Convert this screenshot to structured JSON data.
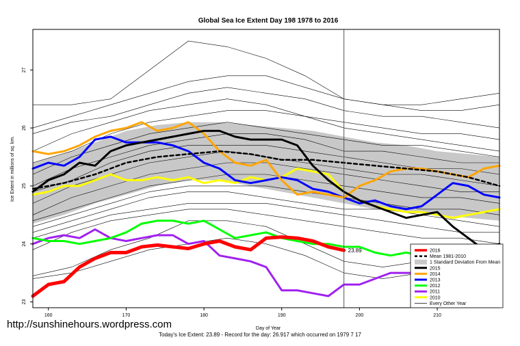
{
  "chart_data": {
    "type": "line",
    "title": "Global Sea Ice Extent Day 198 1978 to 2016",
    "xlabel": "Day of Year",
    "ylabel": "Ice Extent in millions of sq. km.",
    "xlim": [
      158,
      218
    ],
    "ylim": [
      22.9,
      27.7
    ],
    "xticks": [
      160,
      170,
      180,
      190,
      200,
      210
    ],
    "yticks": [
      23,
      24,
      25,
      26,
      27
    ],
    "current_day": 198,
    "current_value_label": "23.89",
    "band": {
      "name": "1 Standard Deviation From Mean",
      "x": [
        158,
        162,
        166,
        170,
        174,
        178,
        182,
        186,
        190,
        194,
        198,
        202,
        206,
        210,
        214,
        218
      ],
      "upper": [
        25.4,
        25.55,
        25.75,
        25.95,
        26.05,
        26.1,
        26.1,
        26.05,
        26.0,
        25.95,
        25.85,
        25.75,
        25.7,
        25.6,
        25.55,
        25.5
      ],
      "lower": [
        24.35,
        24.5,
        24.7,
        24.85,
        25.0,
        25.1,
        25.1,
        25.0,
        24.9,
        24.8,
        24.7,
        24.6,
        24.55,
        24.5,
        24.45,
        24.4
      ]
    },
    "series": [
      {
        "name": "2016",
        "color": "#ff0000",
        "width": 5,
        "dash": "",
        "x": [
          158,
          160,
          162,
          164,
          166,
          168,
          170,
          172,
          174,
          176,
          178,
          180,
          182,
          184,
          186,
          188,
          190,
          192,
          194,
          196,
          198
        ],
        "values": [
          23.1,
          23.3,
          23.35,
          23.6,
          23.75,
          23.85,
          23.85,
          23.95,
          23.98,
          23.95,
          23.92,
          24.0,
          24.05,
          23.95,
          23.9,
          24.1,
          24.12,
          24.1,
          24.05,
          23.95,
          23.89
        ]
      },
      {
        "name": "Mean 1981-2010",
        "color": "#000000",
        "width": 2.5,
        "dash": "5,4",
        "x": [
          158,
          162,
          166,
          170,
          174,
          178,
          182,
          186,
          190,
          194,
          198,
          202,
          206,
          210,
          214,
          218
        ],
        "values": [
          24.95,
          25.05,
          25.2,
          25.4,
          25.5,
          25.55,
          25.6,
          25.55,
          25.45,
          25.45,
          25.4,
          25.35,
          25.3,
          25.25,
          25.15,
          25.0
        ]
      },
      {
        "name": "2015",
        "color": "#000000",
        "width": 3,
        "dash": "",
        "x": [
          158,
          160,
          162,
          164,
          166,
          168,
          170,
          172,
          174,
          176,
          178,
          180,
          182,
          184,
          186,
          188,
          190,
          192,
          194,
          196,
          198,
          200,
          202,
          204,
          206,
          208,
          210,
          212,
          214,
          216,
          218
        ],
        "values": [
          24.9,
          25.1,
          25.2,
          25.4,
          25.35,
          25.6,
          25.7,
          25.75,
          25.8,
          25.85,
          25.9,
          25.95,
          25.95,
          25.85,
          25.8,
          25.8,
          25.8,
          25.7,
          25.35,
          25.1,
          24.9,
          24.75,
          24.65,
          24.55,
          24.45,
          24.5,
          24.55,
          24.3,
          24.1,
          23.9,
          24.0
        ]
      },
      {
        "name": "2014",
        "color": "#ffa500",
        "width": 3,
        "dash": "",
        "x": [
          158,
          160,
          162,
          164,
          166,
          168,
          170,
          172,
          174,
          176,
          178,
          180,
          182,
          184,
          186,
          188,
          190,
          192,
          194,
          196,
          198,
          200,
          202,
          204,
          206,
          208,
          210,
          212,
          214,
          216,
          218
        ],
        "values": [
          25.6,
          25.55,
          25.6,
          25.7,
          25.85,
          25.95,
          26.0,
          26.1,
          25.95,
          26.0,
          26.1,
          25.9,
          25.6,
          25.4,
          25.35,
          25.45,
          25.1,
          24.85,
          24.9,
          24.85,
          24.8,
          25.0,
          25.1,
          25.25,
          25.3,
          25.3,
          25.25,
          25.2,
          25.15,
          25.3,
          25.35
        ]
      },
      {
        "name": "2013",
        "color": "#0000ff",
        "width": 3,
        "dash": "",
        "x": [
          158,
          160,
          162,
          164,
          166,
          168,
          170,
          172,
          174,
          176,
          178,
          180,
          182,
          184,
          186,
          188,
          190,
          192,
          194,
          196,
          198,
          200,
          202,
          204,
          206,
          208,
          210,
          212,
          214,
          216,
          218
        ],
        "values": [
          25.3,
          25.4,
          25.35,
          25.5,
          25.8,
          25.85,
          25.75,
          25.75,
          25.75,
          25.7,
          25.6,
          25.4,
          25.3,
          25.1,
          25.05,
          25.1,
          25.15,
          25.1,
          24.95,
          24.9,
          24.8,
          24.7,
          24.75,
          24.65,
          24.6,
          24.65,
          24.85,
          25.05,
          25.0,
          24.85,
          24.8
        ]
      },
      {
        "name": "2012",
        "color": "#00ff00",
        "width": 3,
        "dash": "",
        "x": [
          158,
          160,
          162,
          164,
          166,
          168,
          170,
          172,
          174,
          176,
          178,
          180,
          182,
          184,
          186,
          188,
          190,
          192,
          194,
          196,
          198,
          200,
          202,
          204,
          206,
          208,
          210,
          212,
          214,
          216,
          218
        ],
        "values": [
          24.1,
          24.05,
          24.05,
          24.0,
          24.05,
          24.1,
          24.2,
          24.35,
          24.4,
          24.4,
          24.35,
          24.4,
          24.25,
          24.1,
          24.15,
          24.2,
          24.1,
          24.05,
          24.0,
          24.0,
          23.95,
          23.95,
          23.85,
          23.8,
          23.85,
          23.8,
          23.75,
          23.7,
          23.8,
          23.6,
          23.7
        ]
      },
      {
        "name": "2011",
        "color": "#a020f0",
        "width": 3,
        "dash": "",
        "x": [
          158,
          160,
          162,
          164,
          166,
          168,
          170,
          172,
          174,
          176,
          178,
          180,
          182,
          184,
          186,
          188,
          190,
          192,
          194,
          196,
          198,
          200,
          202,
          204,
          206,
          208,
          210,
          212,
          214,
          216,
          218
        ],
        "values": [
          24.0,
          24.1,
          24.15,
          24.1,
          24.25,
          24.1,
          24.05,
          24.1,
          24.15,
          24.15,
          24.0,
          24.05,
          23.8,
          23.75,
          23.7,
          23.6,
          23.2,
          23.2,
          23.15,
          23.1,
          23.3,
          23.3,
          23.4,
          23.5,
          23.5,
          23.5,
          23.7,
          23.65,
          23.8,
          23.9,
          23.8
        ]
      },
      {
        "name": "2010",
        "color": "#ffff00",
        "width": 3,
        "dash": "",
        "x": [
          158,
          160,
          162,
          164,
          166,
          168,
          170,
          172,
          174,
          176,
          178,
          180,
          182,
          184,
          186,
          188,
          190,
          192,
          194,
          196,
          198,
          200,
          202,
          204,
          206,
          208,
          210,
          212,
          214,
          216,
          218
        ],
        "values": [
          24.85,
          24.9,
          25.0,
          25.0,
          25.1,
          25.2,
          25.1,
          25.1,
          25.15,
          25.1,
          25.15,
          25.05,
          25.1,
          25.05,
          25.15,
          25.1,
          25.15,
          25.3,
          25.25,
          25.2,
          24.9,
          24.75,
          24.65,
          24.6,
          24.55,
          24.55,
          24.5,
          24.45,
          24.5,
          24.55,
          24.6
        ]
      }
    ],
    "background_series": {
      "name": "Every Other Year",
      "color": "#000000",
      "x": [
        158,
        163,
        168,
        173,
        178,
        183,
        188,
        193,
        198,
        203,
        208,
        213,
        218
      ],
      "lines": [
        [
          26.4,
          26.4,
          26.5,
          27.0,
          27.5,
          27.4,
          27.2,
          26.9,
          26.5,
          26.4,
          26.4,
          26.5,
          26.6
        ],
        [
          26.0,
          26.2,
          26.4,
          26.6,
          26.8,
          26.9,
          26.9,
          26.7,
          26.5,
          26.4,
          26.3,
          26.3,
          26.4
        ],
        [
          25.9,
          26.1,
          26.2,
          26.4,
          26.6,
          26.7,
          26.6,
          26.5,
          26.3,
          26.2,
          26.2,
          26.1,
          26.0
        ],
        [
          25.6,
          25.9,
          26.1,
          26.3,
          26.4,
          26.5,
          26.4,
          26.2,
          26.1,
          26.0,
          25.9,
          25.9,
          25.8
        ],
        [
          25.4,
          25.6,
          25.9,
          26.1,
          26.2,
          26.3,
          26.3,
          26.2,
          26.0,
          25.9,
          25.8,
          25.7,
          25.6
        ],
        [
          25.2,
          25.5,
          25.7,
          25.9,
          26.0,
          26.1,
          26.0,
          25.9,
          25.8,
          25.7,
          25.7,
          25.6,
          25.5
        ],
        [
          25.0,
          25.3,
          25.5,
          25.7,
          25.8,
          25.9,
          25.9,
          25.8,
          25.6,
          25.6,
          25.5,
          25.4,
          25.4
        ],
        [
          24.9,
          25.1,
          25.4,
          25.6,
          25.7,
          25.7,
          25.7,
          25.6,
          25.5,
          25.4,
          25.3,
          25.3,
          25.2
        ],
        [
          24.7,
          25.0,
          25.2,
          25.4,
          25.5,
          25.6,
          25.5,
          25.4,
          25.3,
          25.2,
          25.2,
          25.1,
          25.0
        ],
        [
          24.5,
          24.8,
          25.0,
          25.2,
          25.3,
          25.4,
          25.4,
          25.3,
          25.2,
          25.1,
          25.0,
          24.9,
          24.9
        ],
        [
          24.4,
          24.6,
          24.8,
          25.0,
          25.1,
          25.2,
          25.2,
          25.1,
          25.0,
          24.9,
          24.8,
          24.8,
          24.7
        ],
        [
          24.3,
          24.5,
          24.7,
          24.9,
          25.0,
          25.0,
          25.0,
          24.9,
          24.8,
          24.7,
          24.6,
          24.6,
          24.5
        ],
        [
          24.2,
          24.4,
          24.6,
          24.8,
          24.9,
          24.9,
          24.8,
          24.7,
          24.6,
          24.6,
          24.5,
          24.4,
          24.3
        ],
        [
          24.1,
          24.3,
          24.5,
          24.6,
          24.7,
          24.7,
          24.7,
          24.6,
          24.5,
          24.4,
          24.3,
          24.2,
          24.2
        ],
        [
          23.9,
          24.2,
          24.4,
          24.5,
          24.6,
          24.6,
          24.5,
          24.4,
          24.3,
          24.2,
          24.1,
          24.1,
          24.0
        ],
        [
          23.45,
          23.6,
          23.9,
          24.1,
          24.4,
          24.4,
          24.3,
          24.0,
          23.7,
          23.6,
          23.7,
          23.8,
          23.6
        ],
        [
          23.4,
          23.5,
          23.7,
          23.9,
          24.0,
          24.1,
          24.0,
          23.8,
          23.5,
          23.4,
          23.5,
          23.6,
          23.5
        ]
      ]
    },
    "legend": [
      "2016",
      "Mean 1981-2010",
      "1 Standard Deviation From Mean",
      "2015",
      "2014",
      "2013",
      "2012",
      "2011",
      "2010",
      "Every Other Year"
    ]
  },
  "watermark": "http://sunshinehours.wordpress.com",
  "footer": "Today's Ice Extent: 23.89  -  Record for the day: 26.917 which occurred on 1979 7 17"
}
